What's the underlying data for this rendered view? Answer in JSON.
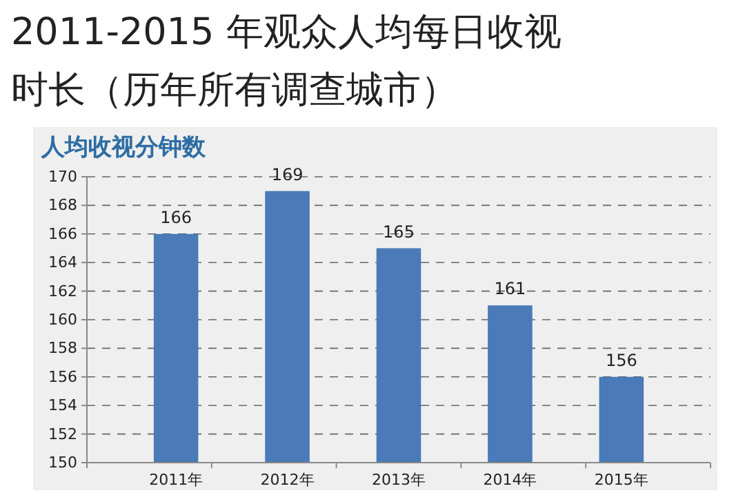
{
  "chart_data": {
    "type": "bar",
    "title": "2011-2015 年观众人均每日收视时长（历年所有调查城市）",
    "subtitle": "人均收视分钟数",
    "categories": [
      "2011年",
      "2012年",
      "2013年",
      "2014年",
      "2015年"
    ],
    "values": [
      166,
      169,
      165,
      161,
      156
    ],
    "color": "#4a7ab8",
    "ylim": [
      150,
      170
    ],
    "yticks": [
      150,
      152,
      154,
      156,
      158,
      160,
      162,
      164,
      166,
      168,
      170
    ],
    "grid": "y",
    "data_labels": true
  }
}
